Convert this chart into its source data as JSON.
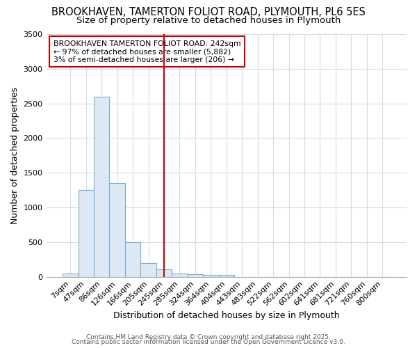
{
  "title_line1": "BROOKHAVEN, TAMERTON FOLIOT ROAD, PLYMOUTH, PL6 5ES",
  "title_line2": "Size of property relative to detached houses in Plymouth",
  "xlabel": "Distribution of detached houses by size in Plymouth",
  "ylabel": "Number of detached properties",
  "bar_labels": [
    "7sqm",
    "47sqm",
    "86sqm",
    "126sqm",
    "166sqm",
    "205sqm",
    "245sqm",
    "285sqm",
    "324sqm",
    "364sqm",
    "404sqm",
    "443sqm",
    "483sqm",
    "522sqm",
    "562sqm",
    "602sqm",
    "641sqm",
    "681sqm",
    "721sqm",
    "760sqm",
    "800sqm"
  ],
  "bar_heights": [
    50,
    1250,
    2600,
    1350,
    500,
    200,
    110,
    50,
    40,
    30,
    30,
    0,
    0,
    0,
    0,
    0,
    0,
    0,
    0,
    0,
    0
  ],
  "bar_color": "#dce9f5",
  "bar_edge_color": "#7aadd4",
  "vline_at_index": 6,
  "vline_color": "#cc0000",
  "annotation_text": "BROOKHAVEN TAMERTON FOLIOT ROAD: 242sqm\n← 97% of detached houses are smaller (5,882)\n3% of semi-detached houses are larger (206) →",
  "annotation_box_color": "#cc0000",
  "ylim": [
    0,
    3500
  ],
  "yticks": [
    0,
    500,
    1000,
    1500,
    2000,
    2500,
    3000,
    3500
  ],
  "footer_line1": "Contains HM Land Registry data © Crown copyright and database right 2025.",
  "footer_line2": "Contains public sector information licensed under the Open Government Licence v3.0.",
  "bg_color": "#ffffff",
  "plot_bg_color": "#ffffff",
  "grid_color": "#d0dce8",
  "title_fontsize": 10.5,
  "subtitle_fontsize": 9.5,
  "axis_label_fontsize": 9,
  "tick_fontsize": 8,
  "footer_fontsize": 6.5
}
